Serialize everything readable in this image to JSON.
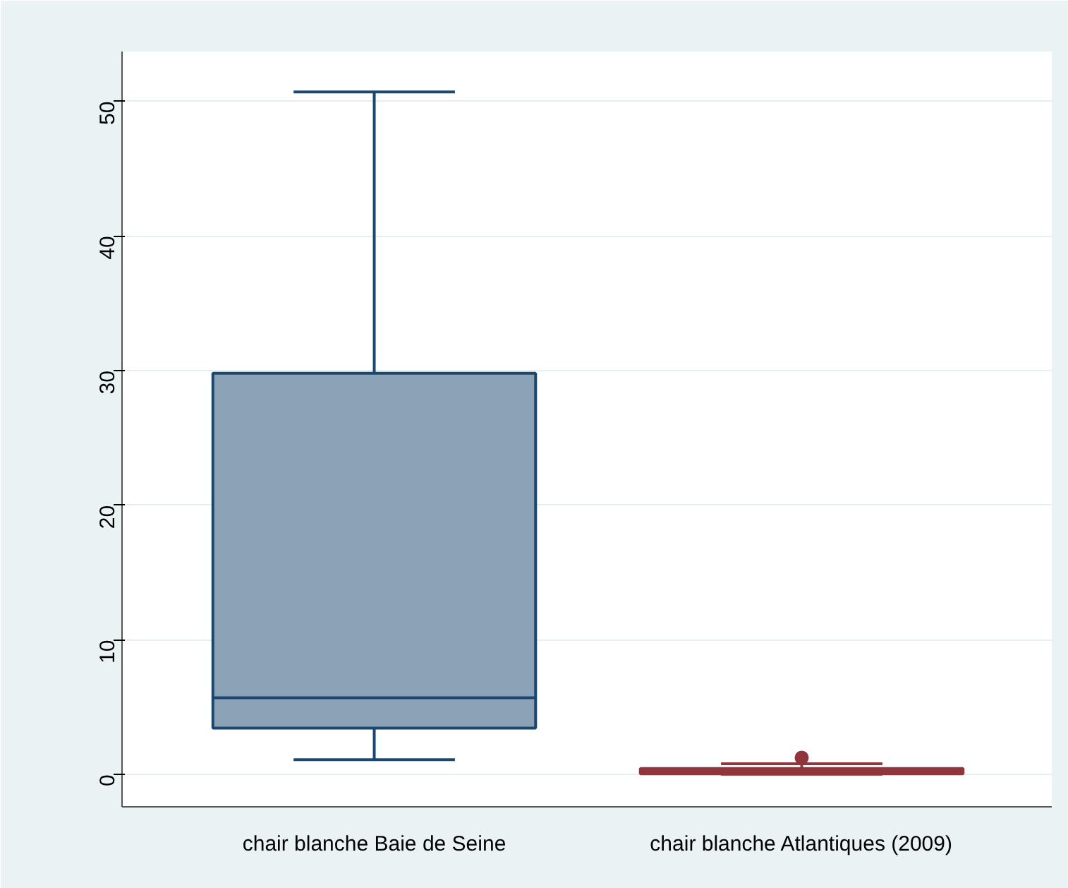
{
  "chart_data": {
    "type": "box",
    "categories": [
      "chair blanche Baie de Seine",
      "chair blanche Atlantiques (2009)"
    ],
    "series": [
      {
        "color": "#1a476f",
        "boxes": [
          {
            "low": 1.1,
            "q1": 3.45,
            "median": 5.7,
            "q3": 29.8,
            "high": 50.7
          },
          null
        ]
      },
      {
        "color": "#90353b",
        "boxes": [
          null,
          {
            "low": 0.03,
            "q1": 0.05,
            "median": 0.3,
            "q3": 0.45,
            "high": 0.8,
            "outliers": [
              1.25
            ]
          }
        ]
      }
    ],
    "ylim": [
      -2.4,
      53.7
    ],
    "yticks": [
      0,
      10,
      20,
      30,
      40,
      50
    ],
    "grid": "y"
  }
}
